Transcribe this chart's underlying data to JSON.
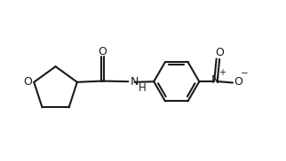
{
  "background": "#ffffff",
  "line_color": "#1a1a1a",
  "line_width": 1.5,
  "font_size": 8.5,
  "figsize": [
    3.22,
    1.82
  ],
  "dpi": 100,
  "xlim": [
    0,
    10
  ],
  "ylim": [
    0,
    5.65
  ]
}
